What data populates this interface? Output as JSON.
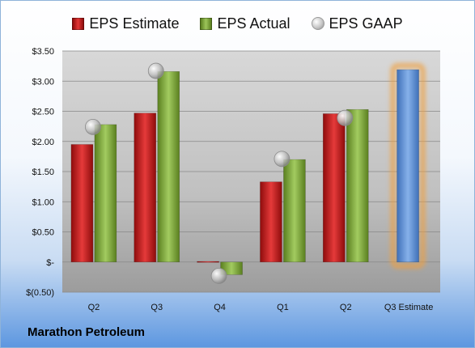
{
  "company": "Marathon Petroleum",
  "chart_data": {
    "type": "bar",
    "categories": [
      "Q2",
      "Q3",
      "Q4",
      "Q1",
      "Q2",
      "Q3 Estimate"
    ],
    "series": [
      {
        "name": "EPS Estimate",
        "color": "#cc1f1f",
        "values": [
          1.95,
          2.47,
          0.01,
          1.33,
          2.46,
          null
        ]
      },
      {
        "name": "EPS Actual",
        "color": "#7fa93a",
        "values": [
          2.28,
          3.16,
          -0.21,
          1.7,
          2.53,
          null
        ]
      },
      {
        "name": "EPS GAAP",
        "type": "scatter",
        "color": "#b5b5b5",
        "values": [
          2.24,
          3.17,
          -0.23,
          1.71,
          2.39,
          null
        ]
      }
    ],
    "estimate": {
      "category": "Q3 Estimate",
      "value": 3.19,
      "color": "#5b8fd6",
      "highlight": "#f0a040"
    },
    "y_ticks": [
      "$(0.50)",
      "$-",
      "$0.50",
      "$1.00",
      "$1.50",
      "$2.00",
      "$2.50",
      "$3.00",
      "$3.50"
    ],
    "y_tick_values": [
      -0.5,
      0,
      0.5,
      1.0,
      1.5,
      2.0,
      2.5,
      3.0,
      3.5
    ],
    "ylim": [
      -0.5,
      3.5
    ],
    "grid": true,
    "legend_position": "top-center"
  }
}
